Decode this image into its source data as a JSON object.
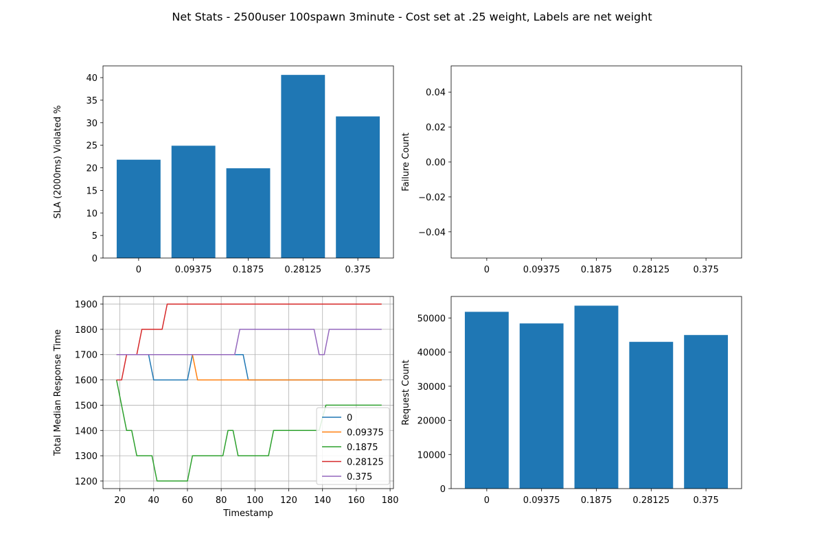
{
  "figure": {
    "title": "Net Stats - 2500user 100spawn 3minute - Cost set at .25 weight, Labels are net weight"
  },
  "chart_data": [
    {
      "type": "bar",
      "position": "top-left",
      "categories": [
        "0",
        "0.09375",
        "0.1875",
        "0.28125",
        "0.375"
      ],
      "values": [
        21.8,
        24.9,
        19.9,
        40.6,
        31.4
      ],
      "xlabel": "",
      "ylabel": "SLA (2000ms) Violated %",
      "ylim": [
        0,
        42.6
      ],
      "yticks": [
        0,
        5,
        10,
        15,
        20,
        25,
        30,
        35,
        40
      ],
      "color": "#1f77b4",
      "grid": false
    },
    {
      "type": "bar",
      "position": "top-right",
      "categories": [
        "0",
        "0.09375",
        "0.1875",
        "0.28125",
        "0.375"
      ],
      "values": [
        0,
        0,
        0,
        0,
        0
      ],
      "xlabel": "",
      "ylabel": "Failure Count",
      "ylim": [
        -0.055,
        0.055
      ],
      "yticks": [
        -0.04,
        -0.02,
        0.0,
        0.02,
        0.04
      ],
      "ytick_labels": [
        "−0.04",
        "−0.02",
        "0.00",
        "0.02",
        "0.04"
      ],
      "color": "#1f77b4",
      "grid": false
    },
    {
      "type": "line",
      "position": "bottom-left",
      "xlabel": "Timestamp",
      "ylabel": "Total Median Response Time",
      "xlim": [
        10,
        182
      ],
      "ylim": [
        1170,
        1930
      ],
      "xticks": [
        20,
        40,
        60,
        80,
        100,
        120,
        140,
        160,
        180
      ],
      "yticks": [
        1200,
        1300,
        1400,
        1500,
        1600,
        1700,
        1800,
        1900
      ],
      "grid": true,
      "legend": "lower-right",
      "series": [
        {
          "name": "0",
          "color": "#1f77b4",
          "points": [
            [
              18,
              1700
            ],
            [
              37,
              1700
            ],
            [
              40,
              1600
            ],
            [
              60,
              1600
            ],
            [
              63,
              1700
            ],
            [
              93,
              1700
            ],
            [
              96,
              1600
            ],
            [
              175,
              1600
            ]
          ]
        },
        {
          "name": "0.09375",
          "color": "#ff7f0e",
          "points": [
            [
              18,
              1700
            ],
            [
              63,
              1700
            ],
            [
              66,
              1600
            ],
            [
              175,
              1600
            ]
          ]
        },
        {
          "name": "0.1875",
          "color": "#2ca02c",
          "points": [
            [
              18,
              1600
            ],
            [
              24,
              1400
            ],
            [
              27,
              1400
            ],
            [
              30,
              1300
            ],
            [
              39,
              1300
            ],
            [
              42,
              1200
            ],
            [
              60,
              1200
            ],
            [
              63,
              1300
            ],
            [
              81,
              1300
            ],
            [
              84,
              1400
            ],
            [
              87,
              1400
            ],
            [
              90,
              1300
            ],
            [
              108,
              1300
            ],
            [
              111,
              1400
            ],
            [
              138,
              1400
            ],
            [
              142,
              1500
            ],
            [
              175,
              1500
            ]
          ]
        },
        {
          "name": "0.28125",
          "color": "#d62728",
          "points": [
            [
              18,
              1600
            ],
            [
              21,
              1600
            ],
            [
              24,
              1700
            ],
            [
              30,
              1700
            ],
            [
              33,
              1800
            ],
            [
              45,
              1800
            ],
            [
              48,
              1900
            ],
            [
              175,
              1900
            ]
          ]
        },
        {
          "name": "0.375",
          "color": "#9467bd",
          "points": [
            [
              18,
              1700
            ],
            [
              88,
              1700
            ],
            [
              91,
              1800
            ],
            [
              135,
              1800
            ],
            [
              138,
              1700
            ],
            [
              141,
              1700
            ],
            [
              144,
              1800
            ],
            [
              175,
              1800
            ]
          ]
        }
      ]
    },
    {
      "type": "bar",
      "position": "bottom-right",
      "categories": [
        "0",
        "0.09375",
        "0.1875",
        "0.28125",
        "0.375"
      ],
      "values": [
        51800,
        48400,
        53600,
        43000,
        45000
      ],
      "xlabel": "",
      "ylabel": "Request Count",
      "ylim": [
        0,
        56300
      ],
      "yticks": [
        0,
        10000,
        20000,
        30000,
        40000,
        50000
      ],
      "color": "#1f77b4",
      "grid": false
    }
  ]
}
